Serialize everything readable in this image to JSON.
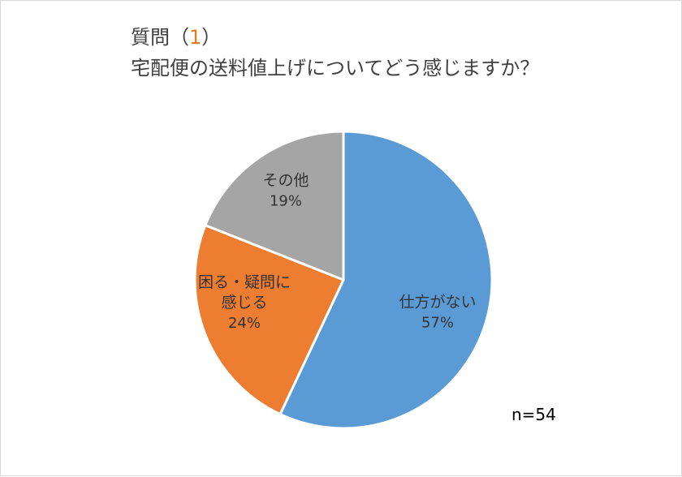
{
  "chart_data": {
    "type": "pie",
    "title_line1_prefix": "質問（",
    "title_line1_number": "1",
    "title_line1_suffix": "）",
    "title_line2": "宅配便の送料値上げについてどう感じますか？",
    "slices": [
      {
        "name": "仕方がない",
        "value": 57,
        "label": "57%",
        "color": "#5b9bd5"
      },
      {
        "name": "困る・疑問に感じる",
        "name_lines": [
          "困る・疑問に",
          "感じる"
        ],
        "value": 24,
        "label": "24%",
        "color": "#ed7d31"
      },
      {
        "name": "その他",
        "value": 19,
        "label": "19%",
        "color": "#a5a5a5"
      }
    ],
    "sample_size_label": "n=54"
  }
}
